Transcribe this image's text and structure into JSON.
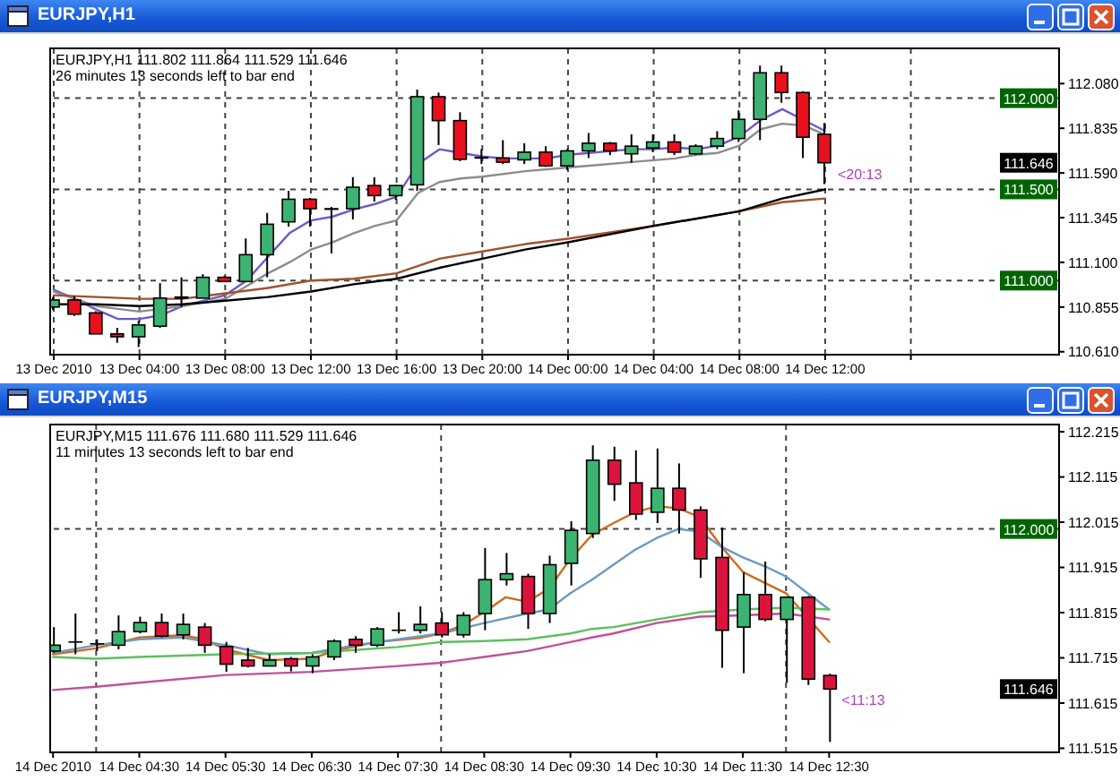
{
  "chart_data": [
    {
      "type": "candlestick",
      "title": "EURJPY,H1",
      "subtitle": "EURJPY,H1 111.802 111.864 111.529 111.646",
      "annotations": [
        "26 minutes 13 seconds left to bar end",
        {
          "text": "<20:13",
          "x": "2010-12-14T12:00",
          "y": 111.646
        },
        {
          "text": "111.646",
          "y": 111.646
        }
      ],
      "x": [
        "2010-12-13T00:00",
        "2010-12-13T01:00",
        "2010-12-13T02:00",
        "2010-12-13T03:00",
        "2010-12-13T04:00",
        "2010-12-13T05:00",
        "2010-12-13T06:00",
        "2010-12-13T07:00",
        "2010-12-13T08:00",
        "2010-12-13T09:00",
        "2010-12-13T10:00",
        "2010-12-13T11:00",
        "2010-12-13T12:00",
        "2010-12-13T13:00",
        "2010-12-13T14:00",
        "2010-12-13T15:00",
        "2010-12-13T16:00",
        "2010-12-13T17:00",
        "2010-12-13T18:00",
        "2010-12-13T19:00",
        "2010-12-13T20:00",
        "2010-12-13T21:00",
        "2010-12-13T22:00",
        "2010-12-13T23:00",
        "2010-12-14T00:00",
        "2010-12-14T01:00",
        "2010-12-14T02:00",
        "2010-12-14T03:00",
        "2010-12-14T04:00",
        "2010-12-14T05:00",
        "2010-12-14T06:00",
        "2010-12-14T07:00",
        "2010-12-14T08:00",
        "2010-12-14T09:00",
        "2010-12-14T10:00",
        "2010-12-14T11:00",
        "2010-12-14T12:00"
      ],
      "ohlc": [
        [
          110.855,
          110.91,
          110.839,
          110.894
        ],
        [
          110.894,
          110.914,
          110.806,
          110.816
        ],
        [
          110.823,
          110.832,
          110.708,
          110.708
        ],
        [
          110.708,
          110.741,
          110.659,
          110.692
        ],
        [
          110.692,
          110.78,
          110.636,
          110.757
        ],
        [
          110.75,
          110.986,
          110.741,
          110.904
        ],
        [
          110.91,
          111.018,
          110.855,
          110.904
        ],
        [
          110.904,
          111.035,
          110.904,
          111.018
        ],
        [
          111.018,
          111.025,
          110.992,
          110.995
        ],
        [
          110.995,
          111.231,
          110.995,
          111.142
        ],
        [
          111.142,
          111.371,
          111.018,
          111.309
        ],
        [
          111.322,
          111.492,
          111.296,
          111.446
        ],
        [
          111.446,
          111.453,
          111.296,
          111.394
        ],
        [
          111.394,
          111.404,
          111.149,
          111.391
        ],
        [
          111.394,
          111.567,
          111.335,
          111.512
        ],
        [
          111.521,
          111.567,
          111.433,
          111.466
        ],
        [
          111.466,
          111.525,
          111.443,
          111.521
        ],
        [
          111.525,
          112.047,
          111.492,
          112.008
        ],
        [
          112.008,
          112.031,
          111.743,
          111.877
        ],
        [
          111.877,
          111.923,
          111.655,
          111.665
        ],
        [
          111.675,
          111.721,
          111.639,
          111.672
        ],
        [
          111.672,
          111.77,
          111.639,
          111.649
        ],
        [
          111.662,
          111.753,
          111.639,
          111.704
        ],
        [
          111.704,
          111.737,
          111.623,
          111.629
        ],
        [
          111.629,
          111.721,
          111.606,
          111.711
        ],
        [
          111.711,
          111.809,
          111.672,
          111.753
        ],
        [
          111.753,
          111.76,
          111.688,
          111.711
        ],
        [
          111.695,
          111.802,
          111.646,
          111.737
        ],
        [
          111.727,
          111.802,
          111.704,
          111.76
        ],
        [
          111.76,
          111.802,
          111.688,
          111.704
        ],
        [
          111.695,
          111.747,
          111.688,
          111.737
        ],
        [
          111.737,
          111.819,
          111.721,
          111.779
        ],
        [
          111.779,
          111.933,
          111.76,
          111.884
        ],
        [
          111.884,
          112.178,
          111.77,
          112.139
        ],
        [
          112.139,
          112.178,
          111.975,
          112.031
        ],
        [
          112.031,
          112.038,
          111.672,
          111.786
        ],
        [
          111.802,
          111.864,
          111.529,
          111.646
        ]
      ],
      "colors": [
        "#3cb371",
        "#e8101c",
        "#e8101c",
        "#e8101c",
        "#3cb371",
        "#3cb371",
        "#e8101c",
        "#3cb371",
        "#e8101c",
        "#3cb371",
        "#3cb371",
        "#3cb371",
        "#e8101c",
        "#e8101c",
        "#3cb371",
        "#e8101c",
        "#3cb371",
        "#3cb371",
        "#e8101c",
        "#e8101c",
        "#e8101c",
        "#e8101c",
        "#3cb371",
        "#e8101c",
        "#3cb371",
        "#3cb371",
        "#e8101c",
        "#3cb371",
        "#3cb371",
        "#e8101c",
        "#3cb371",
        "#3cb371",
        "#3cb371",
        "#3cb371",
        "#e8101c",
        "#e8101c",
        "#e8101c"
      ],
      "series": [
        {
          "type": "line",
          "color": "#6a5acd",
          "values": [
            110.95,
            110.9,
            110.84,
            110.79,
            110.79,
            110.81,
            110.86,
            110.89,
            110.92,
            111.0,
            111.13,
            111.26,
            111.33,
            111.35,
            111.39,
            111.42,
            111.46,
            111.64,
            111.72,
            111.7,
            111.68,
            111.67,
            111.67,
            111.67,
            111.69,
            111.7,
            111.71,
            111.72,
            111.72,
            111.73,
            111.72,
            111.74,
            111.79,
            111.88,
            111.94,
            111.88,
            111.82
          ]
        },
        {
          "type": "line",
          "color": "#8c8c8c",
          "x": [
            "2010-12-13T00:00",
            "2010-12-13T02:00",
            "2010-12-13T04:00",
            "2010-12-13T06:00",
            "2010-12-13T08:00",
            "2010-12-13T09:00",
            "2010-12-13T10:00",
            "2010-12-13T11:00",
            "2010-12-13T12:00",
            "2010-12-13T13:00",
            "2010-12-13T14:00",
            "2010-12-13T15:00",
            "2010-12-13T16:00",
            "2010-12-13T17:00",
            "2010-12-13T18:00",
            "2010-12-13T19:00",
            "2010-12-13T20:00",
            "2010-12-13T22:00",
            "2010-12-14T00:00",
            "2010-12-14T01:00",
            "2010-12-14T03:00",
            "2010-12-14T05:00",
            "2010-12-14T06:00",
            "2010-12-14T07:00",
            "2010-12-14T08:00",
            "2010-12-14T09:00",
            "2010-12-14T10:00",
            "2010-12-14T11:00",
            "2010-12-14T12:00"
          ],
          "values": [
            110.94,
            110.86,
            110.83,
            110.86,
            110.9,
            110.97,
            111.04,
            111.1,
            111.17,
            111.21,
            111.26,
            111.3,
            111.33,
            111.48,
            111.54,
            111.56,
            111.57,
            111.6,
            111.62,
            111.63,
            111.65,
            111.67,
            111.69,
            111.7,
            111.74,
            111.83,
            111.86,
            111.85,
            111.8
          ]
        },
        {
          "type": "line",
          "color": "#a0522d",
          "x": [
            "2010-12-13T00:00",
            "2010-12-13T02:00",
            "2010-12-13T04:00",
            "2010-12-13T06:00",
            "2010-12-13T08:00",
            "2010-12-13T10:00",
            "2010-12-13T12:00",
            "2010-12-13T14:00",
            "2010-12-13T16:00",
            "2010-12-13T18:00",
            "2010-12-13T20:00",
            "2010-12-13T22:00",
            "2010-12-14T00:00",
            "2010-12-14T04:00",
            "2010-12-14T08:00",
            "2010-12-14T10:00",
            "2010-12-14T12:00"
          ],
          "values": [
            110.92,
            110.91,
            110.9,
            110.9,
            110.93,
            110.96,
            111.0,
            111.01,
            111.04,
            111.12,
            111.16,
            111.2,
            111.23,
            111.3,
            111.38,
            111.43,
            111.45
          ]
        },
        {
          "type": "line",
          "color": "#000000",
          "x": [
            "2010-12-13T00:00",
            "2010-12-13T02:00",
            "2010-12-13T04:00",
            "2010-12-13T06:00",
            "2010-12-13T08:00",
            "2010-12-13T10:00",
            "2010-12-13T12:00",
            "2010-12-13T14:00",
            "2010-12-13T16:00",
            "2010-12-13T18:00",
            "2010-12-13T20:00",
            "2010-12-13T22:00",
            "2010-12-14T00:00",
            "2010-12-14T04:00",
            "2010-12-14T08:00",
            "2010-12-14T10:00",
            "2010-12-14T12:00"
          ],
          "values": [
            110.87,
            110.87,
            110.86,
            110.87,
            110.89,
            110.91,
            110.94,
            110.98,
            111.01,
            111.07,
            111.12,
            111.17,
            111.21,
            111.3,
            111.38,
            111.45,
            111.5
          ]
        }
      ],
      "xlim": [
        "2010-12-12T23:50",
        "2010-12-14T22:55"
      ],
      "xticks": [
        {
          "value": "2010-12-13T00:00",
          "label": "13 Dec 2010"
        },
        {
          "value": "2010-12-13T04:00",
          "label": "13 Dec 04:00"
        },
        {
          "value": "2010-12-13T08:00",
          "label": "13 Dec 08:00"
        },
        {
          "value": "2010-12-13T12:00",
          "label": "13 Dec 12:00"
        },
        {
          "value": "2010-12-13T16:00",
          "label": "13 Dec 16:00"
        },
        {
          "value": "2010-12-13T20:00",
          "label": "13 Dec 20:00"
        },
        {
          "value": "2010-12-14T00:00",
          "label": "14 Dec 00:00"
        },
        {
          "value": "2010-12-14T04:00",
          "label": "14 Dec 04:00"
        },
        {
          "value": "2010-12-14T08:00",
          "label": "14 Dec 08:00"
        },
        {
          "value": "2010-12-14T12:00",
          "label": "14 Dec 12:00"
        },
        {
          "value": "2010-12-14T16:00",
          "label": null
        }
      ],
      "ylim": [
        110.594,
        112.273
      ],
      "yticks": [
        {
          "value": 112.08,
          "label": "112.080"
        },
        111.835,
        {
          "value": 111.59,
          "label": "111.590"
        },
        111.345,
        {
          "value": 111.1,
          "label": "111.100"
        },
        110.855,
        {
          "value": 110.61,
          "label": "110.610"
        }
      ],
      "grid": "x",
      "ref_lines": [
        {
          "axis": "y",
          "value": 112,
          "label": "112.000",
          "line_style": "dashed"
        },
        {
          "axis": "y",
          "value": 111.5,
          "label": "111.500",
          "line_style": "dashed"
        },
        {
          "axis": "y",
          "value": 111,
          "label": "111.000",
          "line_style": "dashed"
        }
      ]
    },
    {
      "type": "candlestick",
      "title": "EURJPY,M15",
      "subtitle": "EURJPY,M15 111.676 111.680 111.529 111.646",
      "annotations": [
        "11 minutes 13 seconds left to bar end",
        {
          "text": "<11:13",
          "x": "2010-12-14T12:30",
          "y": 111.646
        },
        {
          "text": "111.646",
          "y": 111.646
        }
      ],
      "x": [
        "2010-12-14T03:30",
        "2010-12-14T03:45",
        "2010-12-14T04:00",
        "2010-12-14T04:15",
        "2010-12-14T04:30",
        "2010-12-14T04:45",
        "2010-12-14T05:00",
        "2010-12-14T05:15",
        "2010-12-14T05:30",
        "2010-12-14T05:45",
        "2010-12-14T06:00",
        "2010-12-14T06:15",
        "2010-12-14T06:30",
        "2010-12-14T06:45",
        "2010-12-14T07:00",
        "2010-12-14T07:15",
        "2010-12-14T07:30",
        "2010-12-14T07:45",
        "2010-12-14T08:00",
        "2010-12-14T08:15",
        "2010-12-14T08:30",
        "2010-12-14T08:45",
        "2010-12-14T09:00",
        "2010-12-14T09:15",
        "2010-12-14T09:30",
        "2010-12-14T09:45",
        "2010-12-14T10:00",
        "2010-12-14T10:15",
        "2010-12-14T10:30",
        "2010-12-14T10:45",
        "2010-12-14T11:00",
        "2010-12-14T11:15",
        "2010-12-14T11:30",
        "2010-12-14T11:45",
        "2010-12-14T12:00",
        "2010-12-14T12:15",
        "2010-12-14T12:30"
      ],
      "ohlc": [
        [
          111.73,
          111.783,
          111.726,
          111.743
        ],
        [
          111.75,
          111.813,
          111.723,
          111.75
        ],
        [
          111.746,
          111.756,
          111.73,
          111.746
        ],
        [
          111.743,
          111.809,
          111.734,
          111.773
        ],
        [
          111.773,
          111.806,
          111.769,
          111.793
        ],
        [
          111.793,
          111.813,
          111.76,
          111.763
        ],
        [
          111.766,
          111.813,
          111.756,
          111.789
        ],
        [
          111.783,
          111.792,
          111.726,
          111.743
        ],
        [
          111.74,
          111.75,
          111.684,
          111.701
        ],
        [
          111.71,
          111.737,
          111.694,
          111.697
        ],
        [
          111.697,
          111.723,
          111.696,
          111.71
        ],
        [
          111.713,
          111.717,
          111.685,
          111.697
        ],
        [
          111.697,
          111.723,
          111.681,
          111.717
        ],
        [
          111.717,
          111.756,
          111.71,
          111.752
        ],
        [
          111.756,
          111.763,
          111.726,
          111.743
        ],
        [
          111.743,
          111.783,
          111.739,
          111.779
        ],
        [
          111.776,
          111.816,
          111.769,
          111.776
        ],
        [
          111.776,
          111.829,
          111.769,
          111.789
        ],
        [
          111.792,
          111.816,
          111.76,
          111.766
        ],
        [
          111.766,
          111.816,
          111.76,
          111.809
        ],
        [
          111.813,
          111.958,
          111.776,
          111.888
        ],
        [
          111.888,
          111.947,
          111.875,
          111.901
        ],
        [
          111.895,
          111.901,
          111.779,
          111.813
        ],
        [
          111.813,
          111.941,
          111.792,
          111.921
        ],
        [
          111.924,
          112.017,
          111.875,
          111.997
        ],
        [
          111.99,
          112.185,
          111.98,
          112.152
        ],
        [
          112.152,
          112.182,
          112.062,
          112.099
        ],
        [
          112.102,
          112.174,
          112.02,
          112.033
        ],
        [
          112.037,
          112.178,
          112.013,
          112.09
        ],
        [
          112.09,
          112.145,
          111.99,
          112.042
        ],
        [
          112.042,
          112.05,
          111.892,
          111.934
        ],
        [
          111.937,
          112.003,
          111.693,
          111.776
        ],
        [
          111.783,
          111.904,
          111.681,
          111.855
        ],
        [
          111.855,
          111.928,
          111.796,
          111.8
        ],
        [
          111.8,
          111.851,
          111.66,
          111.849
        ],
        [
          111.849,
          111.852,
          111.655,
          111.668
        ],
        [
          111.676,
          111.68,
          111.529,
          111.646
        ]
      ],
      "colors": [
        "#3cb371",
        "#3cb371",
        "#3cb371",
        "#3cb371",
        "#3cb371",
        "#dc143c",
        "#3cb371",
        "#dc143c",
        "#dc143c",
        "#dc143c",
        "#3cb371",
        "#dc143c",
        "#3cb371",
        "#3cb371",
        "#dc143c",
        "#3cb371",
        "#3cb371",
        "#3cb371",
        "#dc143c",
        "#3cb371",
        "#3cb371",
        "#3cb371",
        "#dc143c",
        "#3cb371",
        "#3cb371",
        "#3cb371",
        "#dc143c",
        "#dc143c",
        "#3cb371",
        "#dc143c",
        "#dc143c",
        "#dc143c",
        "#3cb371",
        "#dc143c",
        "#3cb371",
        "#dc143c",
        "#dc143c"
      ],
      "series": [
        {
          "type": "line",
          "color": "#d2691e",
          "x": [
            "2010-12-14T03:30",
            "2010-12-14T04:00",
            "2010-12-14T04:30",
            "2010-12-14T05:00",
            "2010-12-14T05:15",
            "2010-12-14T05:30",
            "2010-12-14T06:00",
            "2010-12-14T06:30",
            "2010-12-14T06:45",
            "2010-12-14T07:15",
            "2010-12-14T07:45",
            "2010-12-14T08:00",
            "2010-12-14T08:15",
            "2010-12-14T08:30",
            "2010-12-14T08:45",
            "2010-12-14T09:00",
            "2010-12-14T09:15",
            "2010-12-14T09:30",
            "2010-12-14T09:45",
            "2010-12-14T10:00",
            "2010-12-14T10:15",
            "2010-12-14T10:30",
            "2010-12-14T10:45",
            "2010-12-14T11:00",
            "2010-12-14T11:15",
            "2010-12-14T11:30",
            "2010-12-14T11:45",
            "2010-12-14T12:00",
            "2010-12-14T12:30"
          ],
          "values": [
            111.723,
            111.736,
            111.76,
            111.765,
            111.756,
            111.734,
            111.71,
            111.713,
            111.73,
            111.75,
            111.759,
            111.769,
            111.787,
            111.816,
            111.849,
            111.839,
            111.868,
            111.934,
            111.987,
            112.013,
            112.037,
            112.05,
            112.046,
            112.026,
            111.961,
            111.905,
            111.881,
            111.858,
            111.75
          ]
        },
        {
          "type": "line",
          "color": "#6b9bc3",
          "x": [
            "2010-12-14T03:30",
            "2010-12-14T04:00",
            "2010-12-14T04:30",
            "2010-12-14T05:00",
            "2010-12-14T05:30",
            "2010-12-14T06:00",
            "2010-12-14T06:30",
            "2010-12-14T07:00",
            "2010-12-14T07:30",
            "2010-12-14T08:00",
            "2010-12-14T08:30",
            "2010-12-14T09:00",
            "2010-12-14T09:15",
            "2010-12-14T09:30",
            "2010-12-14T09:45",
            "2010-12-14T10:00",
            "2010-12-14T10:15",
            "2010-12-14T10:30",
            "2010-12-14T10:45",
            "2010-12-14T11:00",
            "2010-12-14T11:15",
            "2010-12-14T11:30",
            "2010-12-14T11:45",
            "2010-12-14T12:00",
            "2010-12-14T12:15",
            "2010-12-14T12:30"
          ],
          "values": [
            111.726,
            111.743,
            111.756,
            111.76,
            111.743,
            111.723,
            111.726,
            111.743,
            111.756,
            111.769,
            111.792,
            111.813,
            111.822,
            111.858,
            111.888,
            111.921,
            111.954,
            111.98,
            112.0,
            111.994,
            111.961,
            111.937,
            111.918,
            111.895,
            111.858,
            111.822
          ]
        },
        {
          "type": "line",
          "color": "#5fbf5f",
          "x": [
            "2010-12-14T03:30",
            "2010-12-14T04:00",
            "2010-12-14T04:30",
            "2010-12-14T05:30",
            "2010-12-14T06:30",
            "2010-12-14T07:30",
            "2010-12-14T08:00",
            "2010-12-14T08:30",
            "2010-12-14T09:00",
            "2010-12-14T09:30",
            "2010-12-14T09:45",
            "2010-12-14T10:00",
            "2010-12-14T10:30",
            "2010-12-14T11:00",
            "2010-12-14T11:30",
            "2010-12-14T12:00",
            "2010-12-14T12:30"
          ],
          "values": [
            111.717,
            111.713,
            111.717,
            111.723,
            111.726,
            111.739,
            111.75,
            111.752,
            111.756,
            111.769,
            111.779,
            111.783,
            111.8,
            111.816,
            111.822,
            111.826,
            111.822
          ]
        },
        {
          "type": "line",
          "color": "#c0509c",
          "x": [
            "2010-12-14T03:30",
            "2010-12-14T04:00",
            "2010-12-14T04:30",
            "2010-12-14T05:30",
            "2010-12-14T06:30",
            "2010-12-14T07:30",
            "2010-12-14T08:00",
            "2010-12-14T08:30",
            "2010-12-14T09:00",
            "2010-12-14T09:30",
            "2010-12-14T09:45",
            "2010-12-14T10:00",
            "2010-12-14T10:30",
            "2010-12-14T11:00",
            "2010-12-14T11:30",
            "2010-12-14T12:00",
            "2010-12-14T12:30"
          ],
          "values": [
            111.644,
            111.651,
            111.66,
            111.677,
            111.684,
            111.697,
            111.704,
            111.717,
            111.73,
            111.75,
            111.76,
            111.769,
            111.792,
            111.806,
            111.809,
            111.813,
            111.8
          ]
        }
      ],
      "xlim": [
        "2010-12-14T03:28",
        "2010-12-14T15:10"
      ],
      "xticks": [
        {
          "value": "2010-12-14T03:30",
          "label": "14 Dec 2010"
        },
        {
          "value": "2010-12-14T04:30",
          "label": "14 Dec 04:30"
        },
        {
          "value": "2010-12-14T05:30",
          "label": "14 Dec 05:30"
        },
        {
          "value": "2010-12-14T06:30",
          "label": "14 Dec 06:30"
        },
        {
          "value": "2010-12-14T07:30",
          "label": "14 Dec 07:30"
        },
        {
          "value": "2010-12-14T08:30",
          "label": "14 Dec 08:30"
        },
        {
          "value": "2010-12-14T09:30",
          "label": "14 Dec 09:30"
        },
        {
          "value": "2010-12-14T10:30",
          "label": "14 Dec 10:30"
        },
        {
          "value": "2010-12-14T11:30",
          "label": "14 Dec 11:30"
        },
        {
          "value": "2010-12-14T12:30",
          "label": "14 Dec 12:30"
        }
      ],
      "ylim": [
        111.506,
        112.231
      ],
      "yticks": [
        112.215,
        112.115,
        112.015,
        111.915,
        111.815,
        111.715,
        111.615,
        111.515
      ],
      "ref_lines": [
        {
          "axis": "y",
          "value": 112,
          "label": "112.000",
          "line_style": "dashed"
        },
        {
          "axis": "x",
          "value": "2010-12-14T04:00",
          "line_style": "dashed"
        },
        {
          "axis": "x",
          "value": "2010-12-14T08:00",
          "line_style": "dashed"
        },
        {
          "axis": "x",
          "value": "2010-12-14T12:00",
          "line_style": "dashed"
        }
      ]
    }
  ]
}
